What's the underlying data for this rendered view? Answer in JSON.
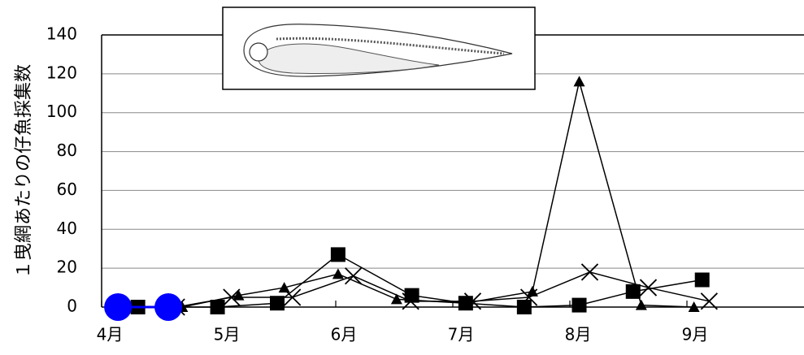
{
  "chart_data": {
    "type": "line",
    "y_label": "１曳網あたりの仔魚採集数",
    "xlim": [
      4,
      10
    ],
    "xticks": [
      {
        "value": 4,
        "label": "4月"
      },
      {
        "value": 5,
        "label": "5月"
      },
      {
        "value": 6,
        "label": "6月"
      },
      {
        "value": 7,
        "label": "7月"
      },
      {
        "value": 8,
        "label": "8月"
      },
      {
        "value": 9,
        "label": "9月"
      }
    ],
    "ylim": [
      0,
      140
    ],
    "yticks": [
      0,
      20,
      40,
      60,
      80,
      100,
      120,
      140
    ],
    "grid": true,
    "series": [
      {
        "color": "#000000",
        "marker": "square",
        "x": [
          4.31,
          4.99,
          5.5,
          6.02,
          6.65,
          7.11,
          7.61,
          8.08,
          8.54,
          9.13
        ],
        "values": [
          0,
          0,
          2,
          27,
          6,
          2,
          0,
          1,
          8,
          14
        ]
      },
      {
        "color": "#000000",
        "marker": "triangle",
        "x": [
          4.69,
          5.17,
          5.56,
          6.02,
          6.52,
          7.11,
          7.68,
          8.08,
          8.61,
          9.06
        ],
        "values": [
          0,
          6,
          10,
          17,
          4,
          2,
          8,
          116,
          1,
          0
        ]
      },
      {
        "color": "#000000",
        "marker": "cross",
        "x": [
          4.64,
          5.11,
          5.63,
          6.15,
          6.64,
          7.17,
          7.65,
          8.17,
          8.67,
          9.19
        ],
        "values": [
          0,
          5,
          5,
          16,
          3,
          3,
          5,
          18,
          10,
          3
        ]
      },
      {
        "color": "#0000ff",
        "marker": "circle",
        "x": [
          4.14,
          4.57
        ],
        "values": [
          0,
          0
        ]
      }
    ]
  }
}
